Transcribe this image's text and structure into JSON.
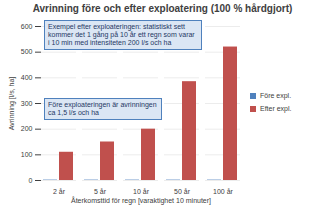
{
  "chart_data": {
    "type": "bar",
    "title": "Avrinning före och efter exploatering (100 % hårdgjort)",
    "x_label": "Återkomsttid för regn [varaktighet 10 minuter]",
    "y_label": "Avrinning [l/s, ha]",
    "categories": [
      "2 år",
      "5 år",
      "10 år",
      "50 år",
      "100 år"
    ],
    "series": [
      {
        "name": "Före expl.",
        "color": "#4f81bd",
        "values": [
          1.5,
          1.5,
          1.5,
          1.5,
          1.5
        ]
      },
      {
        "name": "Efter expl.",
        "color": "#c0504d",
        "values": [
          110,
          150,
          200,
          385,
          520
        ]
      }
    ],
    "ylim": [
      0,
      600
    ],
    "yticks": [
      0,
      100,
      200,
      300,
      400,
      500,
      600
    ],
    "grid": true,
    "legend": "right",
    "annotations": [
      "Exempel efter exploateringen: statistiskt sett kommer det 1 gång på 10 år ett regn som varar i 10 min med intensiteten 200 l/s och ha",
      "Före exploateringen är avrinningen ca 1,5 l/s och ha"
    ]
  }
}
